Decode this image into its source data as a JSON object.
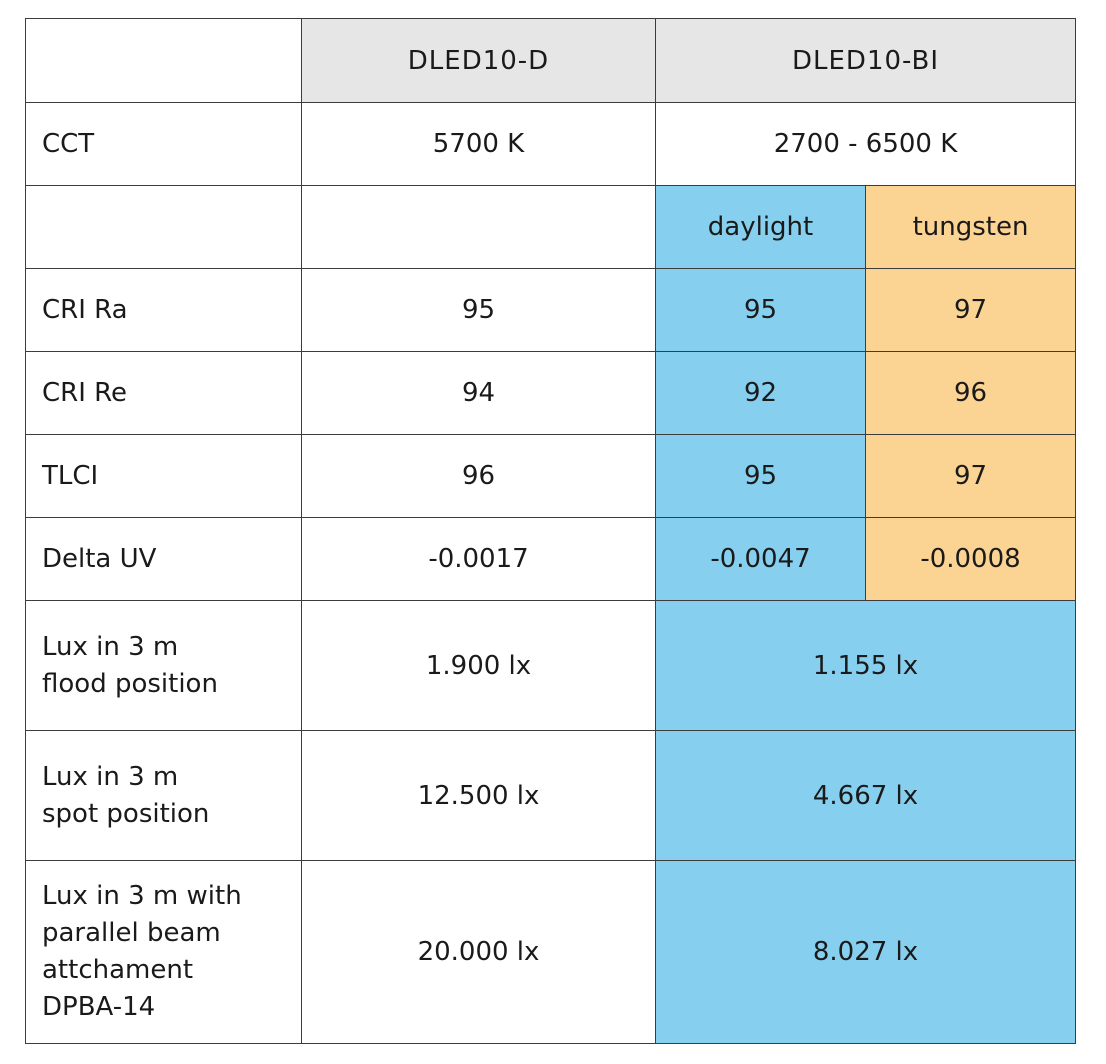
{
  "columns": {
    "model_d": "DLED10-D",
    "model_bi": "DLED10-BI"
  },
  "cct": {
    "label": "CCT",
    "d": "5700 K",
    "bi": "2700 - 6500 K"
  },
  "modes": {
    "daylight": "daylight",
    "tungsten": "tungsten"
  },
  "rows": [
    {
      "label": "CRI Ra",
      "d": "95",
      "daylight": "95",
      "tungsten": "97"
    },
    {
      "label": "CRI Re",
      "d": "94",
      "daylight": "92",
      "tungsten": "96"
    },
    {
      "label": "TLCI",
      "d": "96",
      "daylight": "95",
      "tungsten": "97"
    },
    {
      "label": "Delta UV",
      "d": "-0.0017",
      "daylight": "-0.0047",
      "tungsten": "-0.0008"
    }
  ],
  "lux": [
    {
      "label": "Lux in 3 m\nflood position",
      "d": "1.900 lx",
      "bi": "1.155 lx"
    },
    {
      "label": "Lux in 3 m\nspot position",
      "d": "12.500 lx",
      "bi": "4.667 lx"
    },
    {
      "label": "Lux in 3 m with\nparallel beam\nattchament\nDPBA-14",
      "d": "20.000 lx",
      "bi": "8.027 lx"
    }
  ],
  "colors": {
    "header_bg": "#e6e6e6",
    "daylight": "#87cfef",
    "tungsten": "#fbd392",
    "border": "#3c3c3c"
  }
}
